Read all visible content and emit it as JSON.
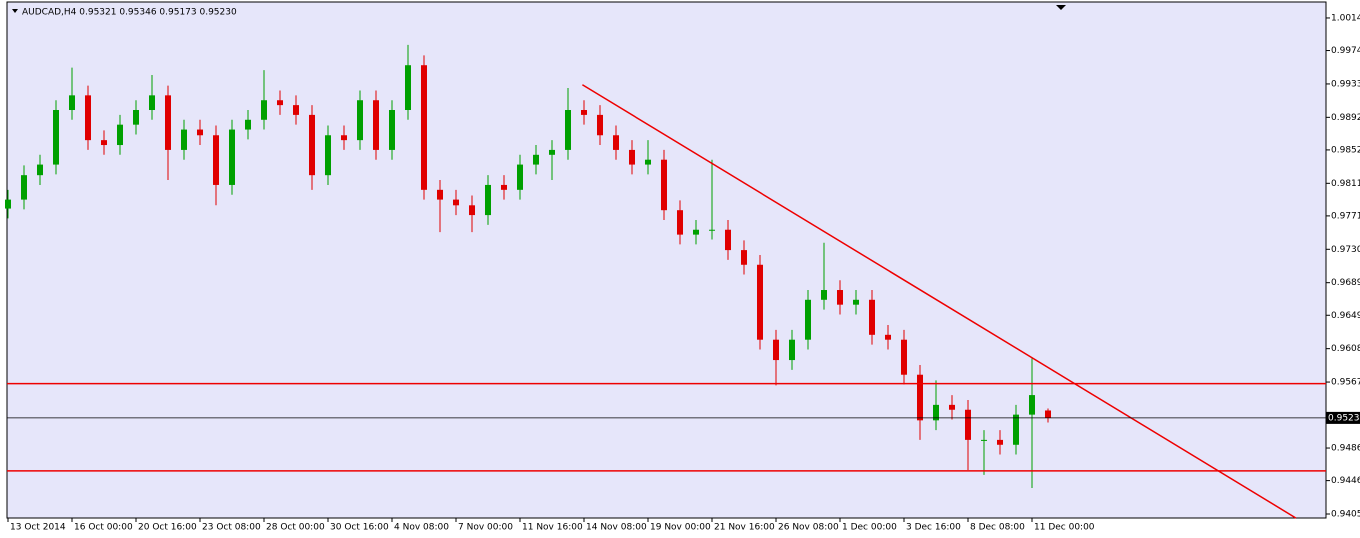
{
  "chart_data": {
    "type": "candlestick",
    "title": "AUDCAD,H4 0.95321 0.95346 0.95173 0.95230",
    "categories": [
      "13 Oct 2014",
      null,
      null,
      null,
      "16 Oct 00:00",
      null,
      null,
      null,
      "20 Oct 16:00",
      null,
      null,
      null,
      "23 Oct 08:00",
      null,
      null,
      null,
      "28 Oct 00:00",
      null,
      null,
      null,
      "30 Oct 16:00",
      null,
      null,
      null,
      "4 Nov 08:00",
      null,
      null,
      null,
      "7 Nov 00:00",
      null,
      null,
      null,
      "11 Nov 16:00",
      null,
      null,
      null,
      "14 Nov 08:00",
      null,
      null,
      null,
      "19 Nov 00:00",
      null,
      null,
      null,
      "21 Nov 16:00",
      null,
      null,
      null,
      "26 Nov 08:00",
      null,
      null,
      null,
      "1 Dec 00:00",
      null,
      null,
      null,
      "3 Dec 16:00",
      null,
      null,
      null,
      "8 Dec 08:00",
      null,
      null,
      null,
      "11 Dec 00:00",
      null
    ],
    "open": [
      0.978,
      0.9791,
      0.9821,
      0.9834,
      0.9901,
      0.9919,
      0.9864,
      0.9858,
      0.9883,
      0.9901,
      0.9919,
      0.9852,
      0.9877,
      0.987,
      0.9809,
      0.9877,
      0.9889,
      0.9913,
      0.9907,
      0.9895,
      0.9821,
      0.987,
      0.9864,
      0.9913,
      0.9852,
      0.9901,
      0.9956,
      0.9803,
      0.9791,
      0.9784,
      0.9772,
      0.9809,
      0.9803,
      0.9834,
      0.9846,
      0.9852,
      0.9901,
      0.9895,
      0.987,
      0.9852,
      0.9834,
      0.984,
      0.9778,
      0.9748,
      0.9754,
      0.9754,
      0.9729,
      0.9711,
      0.9619,
      0.9594,
      0.9619,
      0.9668,
      0.968,
      0.9662,
      0.9668,
      0.9625,
      0.9619,
      0.9576,
      0.952,
      0.9539,
      0.9533,
      0.9496,
      0.9496,
      0.949,
      0.9527,
      0.95321
    ],
    "high": [
      0.9803,
      0.9833,
      0.9846,
      0.9913,
      0.9953,
      0.9931,
      0.9876,
      0.9895,
      0.9913,
      0.9944,
      0.9931,
      0.9889,
      0.9889,
      0.9882,
      0.9889,
      0.9901,
      0.995,
      0.9925,
      0.9919,
      0.9907,
      0.9882,
      0.9882,
      0.9925,
      0.9925,
      0.9913,
      0.9981,
      0.9968,
      0.9815,
      0.9803,
      0.9796,
      0.9821,
      0.9821,
      0.9846,
      0.9858,
      0.9864,
      0.9928,
      0.9913,
      0.9907,
      0.9882,
      0.9864,
      0.9864,
      0.9852,
      0.979,
      0.9766,
      0.984,
      0.9766,
      0.9741,
      0.9723,
      0.9631,
      0.9631,
      0.968,
      0.9738,
      0.9692,
      0.968,
      0.968,
      0.9637,
      0.9631,
      0.9588,
      0.9569,
      0.9551,
      0.9545,
      0.9508,
      0.9508,
      0.9539,
      0.9596,
      0.95346
    ],
    "low": [
      0.9768,
      0.9779,
      0.9809,
      0.9822,
      0.9889,
      0.9852,
      0.9846,
      0.9846,
      0.9871,
      0.9889,
      0.9815,
      0.984,
      0.9858,
      0.9784,
      0.9797,
      0.9865,
      0.9877,
      0.9895,
      0.9883,
      0.9803,
      0.9809,
      0.9852,
      0.9852,
      0.984,
      0.984,
      0.9889,
      0.9791,
      0.9751,
      0.9772,
      0.9751,
      0.976,
      0.9791,
      0.9791,
      0.9822,
      0.9815,
      0.984,
      0.9883,
      0.9858,
      0.984,
      0.9822,
      0.9822,
      0.9766,
      0.9736,
      0.9736,
      0.9742,
      0.9717,
      0.9699,
      0.9607,
      0.9563,
      0.9582,
      0.9607,
      0.9656,
      0.965,
      0.965,
      0.9613,
      0.9607,
      0.9564,
      0.9496,
      0.9508,
      0.9521,
      0.9459,
      0.9453,
      0.9478,
      0.9478,
      0.9437,
      0.95173
    ],
    "close": [
      0.9791,
      0.9821,
      0.9834,
      0.9901,
      0.9919,
      0.9864,
      0.9858,
      0.9883,
      0.9901,
      0.9919,
      0.9852,
      0.9877,
      0.987,
      0.9809,
      0.9877,
      0.9889,
      0.9913,
      0.9907,
      0.9895,
      0.9821,
      0.987,
      0.9864,
      0.9913,
      0.9852,
      0.9901,
      0.9956,
      0.9803,
      0.9791,
      0.9784,
      0.9772,
      0.9809,
      0.9803,
      0.9834,
      0.9846,
      0.9852,
      0.9901,
      0.9895,
      0.987,
      0.9852,
      0.9834,
      0.984,
      0.9778,
      0.9748,
      0.9754,
      0.9754,
      0.9729,
      0.9711,
      0.9619,
      0.9594,
      0.9619,
      0.9668,
      0.968,
      0.9662,
      0.9668,
      0.9625,
      0.9619,
      0.9576,
      0.952,
      0.9539,
      0.9533,
      0.9496,
      0.9496,
      0.949,
      0.9527,
      0.9551,
      0.9523
    ],
    "up_color": "#00a000",
    "down_color": "#e00000",
    "ylim": [
      0.94001,
      1.00336
    ],
    "yticks": [
      {
        "value": 1.0014,
        "label": "1.00140"
      },
      {
        "value": 0.9974,
        "label": "0.99740"
      },
      {
        "value": 0.9933,
        "label": "0.99330"
      },
      {
        "value": 0.9892,
        "label": "0.98920"
      },
      {
        "value": 0.9852,
        "label": "0.98520"
      },
      {
        "value": 0.9811,
        "label": "0.98110"
      },
      {
        "value": 0.9771,
        "label": "0.97710"
      },
      {
        "value": 0.973,
        "label": "0.97300"
      },
      {
        "value": 0.9689,
        "label": "0.96890"
      },
      {
        "value": 0.9649,
        "label": "0.96490"
      },
      {
        "value": 0.9608,
        "label": "0.96080"
      },
      {
        "value": 0.9567,
        "label": "0.95670"
      },
      {
        "value": 0.9486,
        "label": "0.94860"
      },
      {
        "value": 0.9446,
        "label": "0.94460"
      },
      {
        "value": 0.9405,
        "label": "0.94050"
      }
    ],
    "current_price": {
      "value": 0.9523,
      "label": "0.95230"
    },
    "hlines": [
      0.9565,
      0.9458
    ],
    "trendline": {
      "x": [
        35.9,
        80.5
      ],
      "y": [
        0.9932,
        0.94
      ]
    },
    "line_color": "#ee0000",
    "background": "#e6e6fa"
  }
}
